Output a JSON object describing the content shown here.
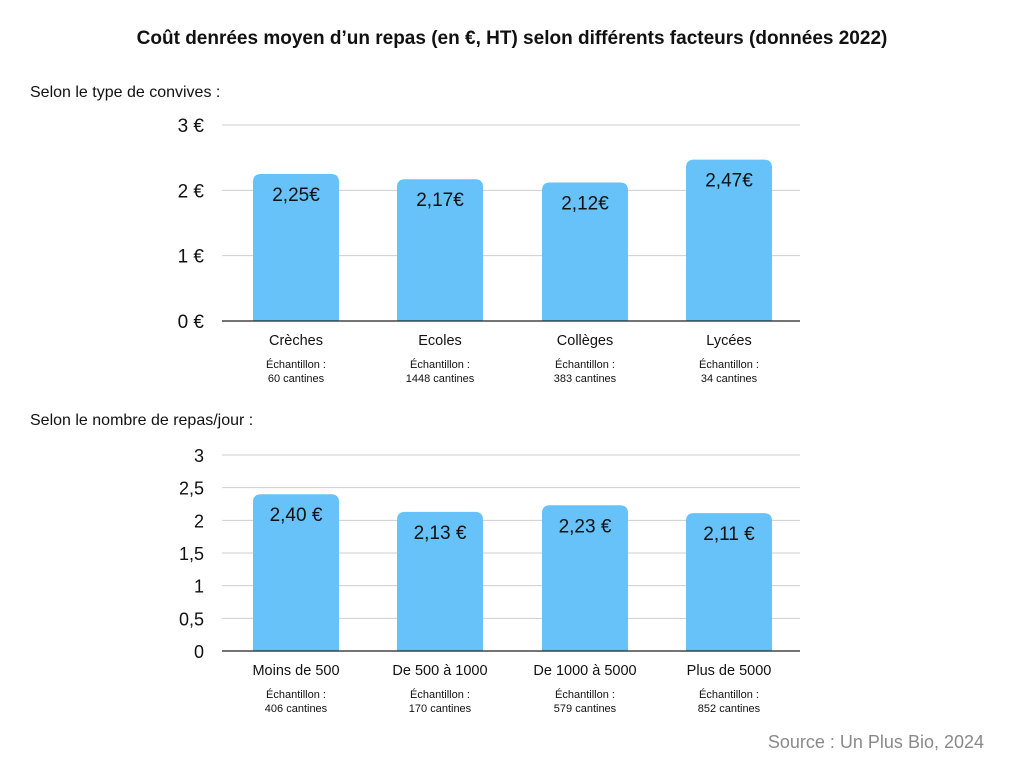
{
  "title": "Coût denrées moyen d’un repas (en €, HT) selon différents facteurs (données 2022)",
  "source": "Source : Un Plus Bio, 2024",
  "colors": {
    "bar": "#66c2f8",
    "grid": "#cfcfcf",
    "axis": "#222222",
    "text": "#111111"
  },
  "chart_data": [
    {
      "type": "bar",
      "section_label": "Selon le type de convives :",
      "categories": [
        "Crèches",
        "Ecoles",
        "Collèges",
        "Lycées"
      ],
      "values": [
        2.25,
        2.17,
        2.12,
        2.47
      ],
      "value_labels": [
        "2,25€",
        "2,17€",
        "2,12€",
        "2,47€"
      ],
      "sample_prefix": "Échantillon :",
      "samples": [
        "60 cantines",
        "1448 cantines",
        "383 cantines",
        "34 cantines"
      ],
      "yticks": [
        0,
        1,
        2,
        3
      ],
      "ytick_labels": [
        "0 €",
        "1 €",
        "2 €",
        "3 €"
      ],
      "ylim": [
        0,
        3
      ],
      "grid": true,
      "xlabel": "",
      "ylabel": ""
    },
    {
      "type": "bar",
      "section_label": "Selon le nombre de repas/jour :",
      "categories": [
        "Moins de 500",
        "De 500 à 1000",
        "De 1000 à 5000",
        "Plus de 5000"
      ],
      "values": [
        2.4,
        2.13,
        2.23,
        2.11
      ],
      "value_labels": [
        "2,40 €",
        "2,13 €",
        "2,23 €",
        "2,11 €"
      ],
      "sample_prefix": "Échantillon :",
      "samples": [
        "406 cantines",
        "170 cantines",
        "579 cantines",
        "852 cantines"
      ],
      "yticks": [
        0,
        0.5,
        1,
        1.5,
        2,
        2.5,
        3
      ],
      "ytick_labels": [
        "0",
        "0,5",
        "1",
        "1,5",
        "2",
        "2,5",
        "3"
      ],
      "ylim": [
        0,
        3
      ],
      "grid": true,
      "xlabel": "",
      "ylabel": ""
    }
  ]
}
